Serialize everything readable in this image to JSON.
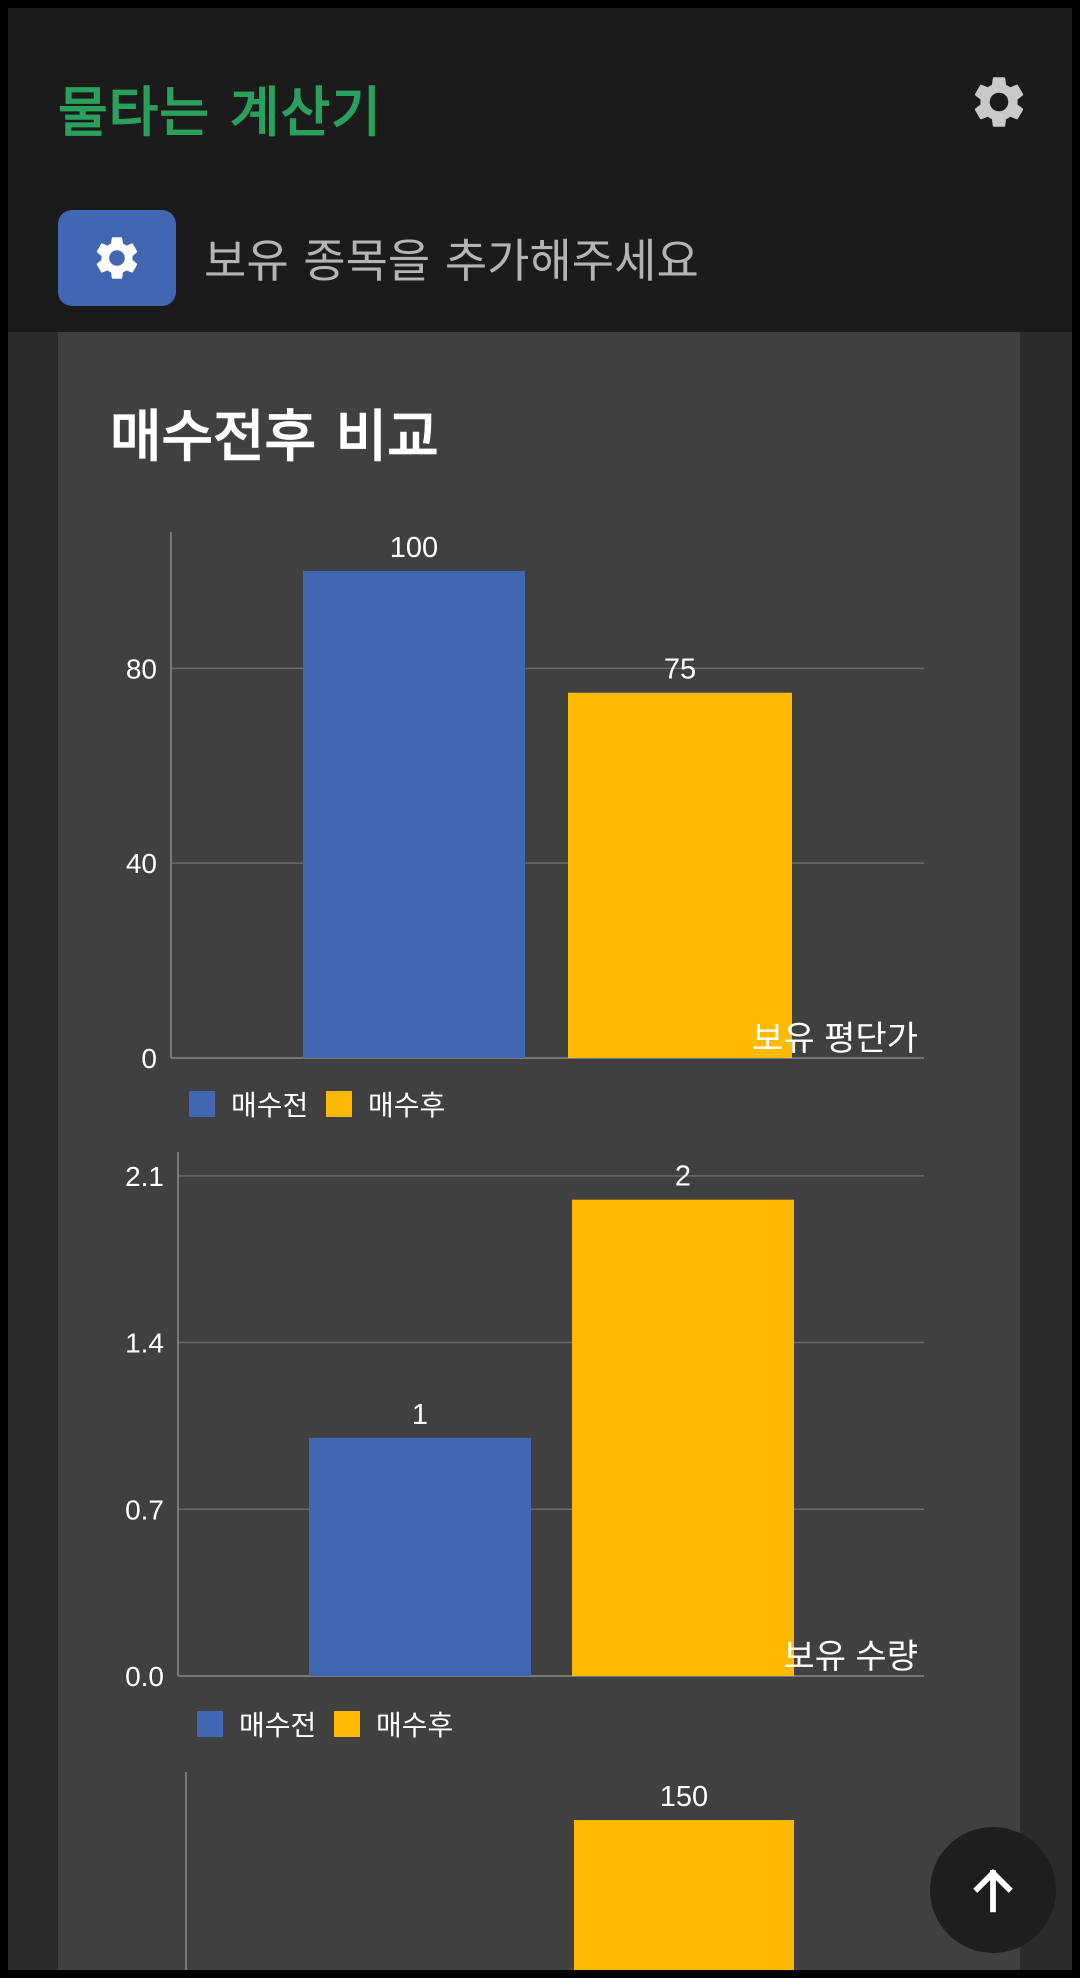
{
  "app": {
    "title": "물타는 계산기",
    "title_color": "#2aa05d",
    "settings_icon": "gear-icon"
  },
  "holdings": {
    "add_button_icon": "gear-icon",
    "add_label": "보유 종목을 추가해주세요"
  },
  "comparison": {
    "title": "매수전후 비교"
  },
  "legend": {
    "before": "매수전",
    "after": "매수후"
  },
  "colors": {
    "before": "#4267b2",
    "after": "#ffba00",
    "grid": "#6a6a6a",
    "text": "#ffffff"
  },
  "scroll_top_icon": "arrow-up-icon",
  "chart_data": [
    {
      "type": "bar",
      "categories": [
        "매수전",
        "매수후"
      ],
      "values": [
        100,
        75
      ],
      "data_labels": [
        "100",
        "75"
      ],
      "xlabel": "보유 평단가",
      "ylim": [
        0,
        108
      ],
      "yticks": [
        0,
        40,
        80
      ],
      "ytick_labels": [
        "0",
        "40",
        "80"
      ],
      "legend": [
        "매수전",
        "매수후"
      ],
      "legend_position": "bottom-left",
      "grid": true
    },
    {
      "type": "bar",
      "categories": [
        "매수전",
        "매수후"
      ],
      "values": [
        1,
        2
      ],
      "data_labels": [
        "1",
        "2"
      ],
      "xlabel": "보유 수량",
      "ylim": [
        0,
        2.2
      ],
      "yticks": [
        0,
        0.7,
        1.4,
        2.1
      ],
      "ytick_labels": [
        "0.0",
        "0.7",
        "1.4",
        "2.1"
      ],
      "legend": [
        "매수전",
        "매수후"
      ],
      "legend_position": "bottom-left",
      "grid": true
    },
    {
      "type": "bar",
      "categories": [
        "매수전",
        "매수후"
      ],
      "values": [
        null,
        150
      ],
      "data_labels": [
        "",
        "150"
      ],
      "grid": true
    }
  ]
}
